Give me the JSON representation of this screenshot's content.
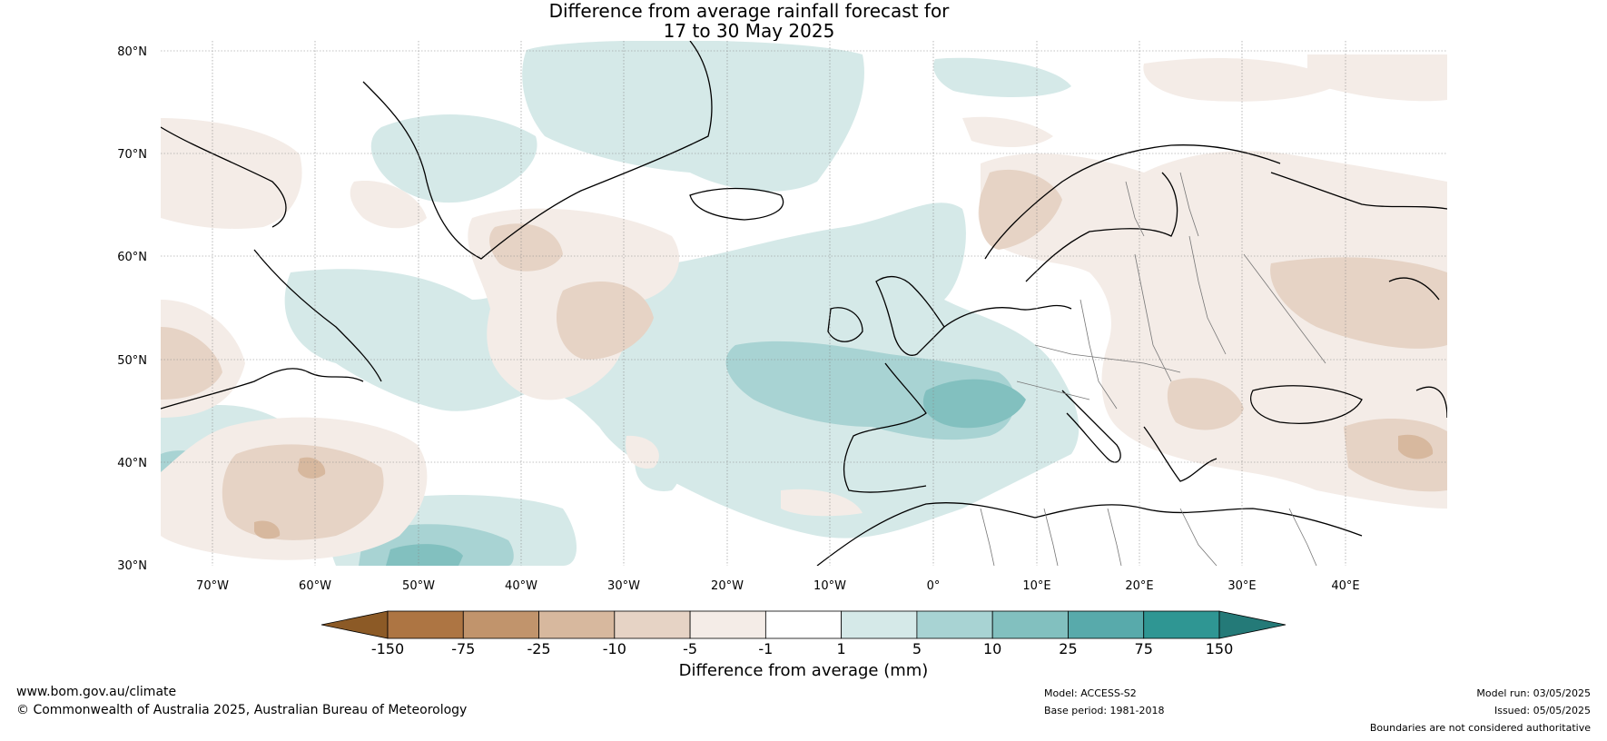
{
  "title": {
    "line1": "Difference from average rainfall forecast for",
    "line2": "17 to 30 May 2025"
  },
  "map": {
    "lat_labels": [
      "80°N",
      "70°N",
      "60°N",
      "50°N",
      "40°N",
      "30°N"
    ],
    "lon_labels": [
      "70°W",
      "60°W",
      "50°W",
      "40°W",
      "30°W",
      "20°W",
      "10°W",
      "0°",
      "10°E",
      "20°E",
      "30°E",
      "40°E"
    ]
  },
  "colorbar": {
    "title": "Difference from average (mm)",
    "ticks": [
      "-150",
      "-75",
      "-25",
      "-10",
      "-5",
      "-1",
      "1",
      "5",
      "10",
      "25",
      "75",
      "150"
    ],
    "colors": [
      "#8c5a26",
      "#ad7543",
      "#c1946c",
      "#d7b89e",
      "#e6d3c5",
      "#f4ece7",
      "#ffffff",
      "#d5e9e8",
      "#a8d3d3",
      "#82c0bf",
      "#58aaab",
      "#2f9693",
      "#247a78"
    ]
  },
  "footer": {
    "url": "www.bom.gov.au/climate",
    "copyright": "© Commonwealth of Australia 2025, Australian Bureau of Meteorology",
    "model": "Model: ACCESS-S2",
    "base_period": "Base period: 1981-2018",
    "model_run": "Model run: 03/05/2025",
    "issued": "Issued: 05/05/2025",
    "disclaimer": "Boundaries are not considered authoritative"
  }
}
